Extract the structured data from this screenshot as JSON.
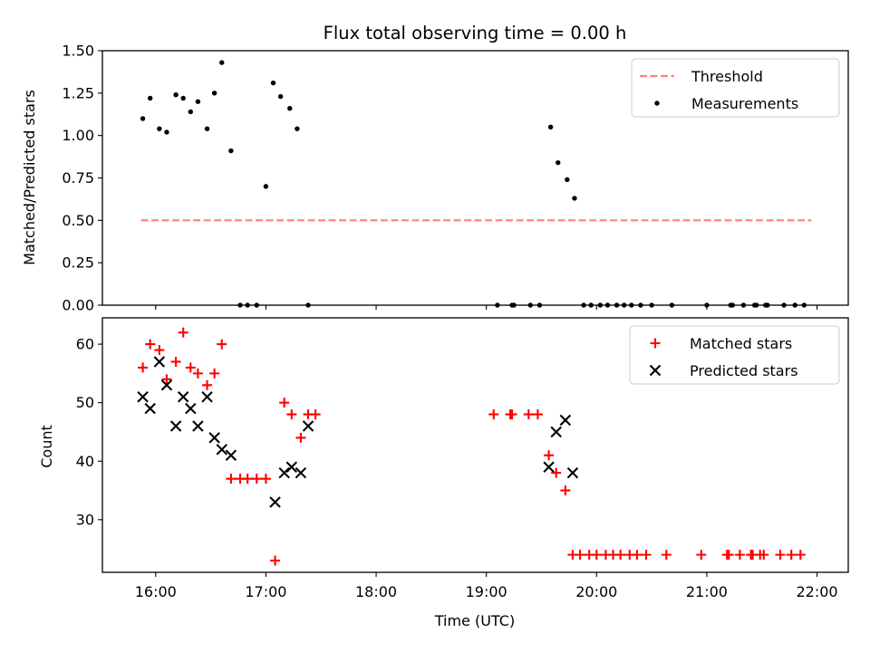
{
  "chart_data": [
    {
      "type": "scatter",
      "title": "Flux total observing time = 0.00 h",
      "xlabel": "",
      "ylabel": "Matched/Predicted stars",
      "xlim": [
        "15:31",
        "22:17"
      ],
      "ylim": [
        0,
        1.5
      ],
      "yticks": [
        0,
        0.25,
        0.5,
        0.75,
        1.0,
        1.25,
        1.5
      ],
      "ytick_labels": [
        "0.00",
        "0.25",
        "0.50",
        "0.75",
        "1.00",
        "1.25",
        "1.50"
      ],
      "xticks": [
        "16:00",
        "17:00",
        "18:00",
        "19:00",
        "20:00",
        "21:00",
        "22:00"
      ],
      "show_xtick_labels": false,
      "legend_position": "top-right",
      "series": [
        {
          "name": "Threshold",
          "kind": "line",
          "style": "dashed",
          "color": "#ff7f7f",
          "points": [
            [
              "15:52",
              0.5
            ],
            [
              "21:57",
              0.5
            ]
          ]
        },
        {
          "name": "Measurements",
          "kind": "scatter",
          "marker": "dot",
          "color": "#000000",
          "points": [
            [
              "15:53",
              1.1
            ],
            [
              "15:57",
              1.22
            ],
            [
              "16:02",
              1.04
            ],
            [
              "16:06",
              1.02
            ],
            [
              "16:11",
              1.24
            ],
            [
              "16:15",
              1.22
            ],
            [
              "16:19",
              1.14
            ],
            [
              "16:23",
              1.2
            ],
            [
              "16:28",
              1.04
            ],
            [
              "16:32",
              1.25
            ],
            [
              "16:36",
              1.43
            ],
            [
              "16:41",
              0.91
            ],
            [
              "16:46",
              0.0
            ],
            [
              "16:50",
              0.0
            ],
            [
              "16:55",
              0.0
            ],
            [
              "17:00",
              0.7
            ],
            [
              "17:04",
              1.31
            ],
            [
              "17:08",
              1.23
            ],
            [
              "17:13",
              1.16
            ],
            [
              "17:17",
              1.04
            ],
            [
              "17:23",
              0.0
            ],
            [
              "19:06",
              0.0
            ],
            [
              "19:14",
              0.0
            ],
            [
              "19:15",
              0.0
            ],
            [
              "19:24",
              0.0
            ],
            [
              "19:29",
              0.0
            ],
            [
              "19:35",
              1.05
            ],
            [
              "19:39",
              0.84
            ],
            [
              "19:44",
              0.74
            ],
            [
              "19:48",
              0.63
            ],
            [
              "19:53",
              0.0
            ],
            [
              "19:57",
              0.0
            ],
            [
              "20:02",
              0.0
            ],
            [
              "20:06",
              0.0
            ],
            [
              "20:11",
              0.0
            ],
            [
              "20:15",
              0.0
            ],
            [
              "20:19",
              0.0
            ],
            [
              "20:24",
              0.0
            ],
            [
              "20:30",
              0.0
            ],
            [
              "20:41",
              0.0
            ],
            [
              "21:00",
              0.0
            ],
            [
              "21:13",
              0.0
            ],
            [
              "21:14",
              0.0
            ],
            [
              "21:20",
              0.0
            ],
            [
              "21:26",
              0.0
            ],
            [
              "21:27",
              0.0
            ],
            [
              "21:32",
              0.0
            ],
            [
              "21:33",
              0.0
            ],
            [
              "21:42",
              0.0
            ],
            [
              "21:48",
              0.0
            ],
            [
              "21:53",
              0.0
            ]
          ]
        }
      ]
    },
    {
      "type": "scatter",
      "title": "",
      "xlabel": "Time (UTC)",
      "ylabel": "Count",
      "xlim": [
        "15:31",
        "22:17"
      ],
      "ylim": [
        21,
        64.5
      ],
      "yticks": [
        30,
        40,
        50,
        60
      ],
      "ytick_labels": [
        "30",
        "40",
        "50",
        "60"
      ],
      "xticks": [
        "16:00",
        "17:00",
        "18:00",
        "19:00",
        "20:00",
        "21:00",
        "22:00"
      ],
      "show_xtick_labels": true,
      "legend_position": "top-right",
      "series": [
        {
          "name": "Matched stars",
          "kind": "scatter",
          "marker": "plus",
          "color": "#ff0000",
          "points": [
            [
              "15:53",
              56
            ],
            [
              "15:57",
              60
            ],
            [
              "16:02",
              59
            ],
            [
              "16:06",
              54
            ],
            [
              "16:11",
              57
            ],
            [
              "16:15",
              62
            ],
            [
              "16:19",
              56
            ],
            [
              "16:23",
              55
            ],
            [
              "16:28",
              53
            ],
            [
              "16:32",
              55
            ],
            [
              "16:36",
              60
            ],
            [
              "16:41",
              37
            ],
            [
              "16:46",
              37
            ],
            [
              "16:50",
              37
            ],
            [
              "16:55",
              37
            ],
            [
              "17:00",
              37
            ],
            [
              "17:05",
              23
            ],
            [
              "17:10",
              50
            ],
            [
              "17:14",
              48
            ],
            [
              "17:19",
              44
            ],
            [
              "17:23",
              48
            ],
            [
              "17:27",
              48
            ],
            [
              "19:04",
              48
            ],
            [
              "19:13",
              48
            ],
            [
              "19:14",
              48
            ],
            [
              "19:23",
              48
            ],
            [
              "19:28",
              48
            ],
            [
              "19:34",
              41
            ],
            [
              "19:38",
              38
            ],
            [
              "19:43",
              35
            ],
            [
              "19:47",
              24
            ],
            [
              "19:51",
              24
            ],
            [
              "19:56",
              24
            ],
            [
              "20:00",
              24
            ],
            [
              "20:05",
              24
            ],
            [
              "20:09",
              24
            ],
            [
              "20:13",
              24
            ],
            [
              "20:18",
              24
            ],
            [
              "20:22",
              24
            ],
            [
              "20:27",
              24
            ],
            [
              "20:38",
              24
            ],
            [
              "20:57",
              24
            ],
            [
              "21:11",
              24
            ],
            [
              "21:12",
              24
            ],
            [
              "21:18",
              24
            ],
            [
              "21:24",
              24
            ],
            [
              "21:25",
              24
            ],
            [
              "21:29",
              24
            ],
            [
              "21:31",
              24
            ],
            [
              "21:40",
              24
            ],
            [
              "21:46",
              24
            ],
            [
              "21:51",
              24
            ]
          ]
        },
        {
          "name": "Predicted stars",
          "kind": "scatter",
          "marker": "x",
          "color": "#000000",
          "points": [
            [
              "15:53",
              51
            ],
            [
              "15:57",
              49
            ],
            [
              "16:02",
              57
            ],
            [
              "16:06",
              53
            ],
            [
              "16:11",
              46
            ],
            [
              "16:15",
              51
            ],
            [
              "16:19",
              49
            ],
            [
              "16:23",
              46
            ],
            [
              "16:28",
              51
            ],
            [
              "16:32",
              44
            ],
            [
              "16:36",
              42
            ],
            [
              "16:41",
              41
            ],
            [
              "17:05",
              33
            ],
            [
              "17:10",
              38
            ],
            [
              "17:14",
              39
            ],
            [
              "17:19",
              38
            ],
            [
              "17:23",
              46
            ],
            [
              "19:34",
              39
            ],
            [
              "19:38",
              45
            ],
            [
              "19:43",
              47
            ],
            [
              "19:47",
              38
            ]
          ]
        }
      ]
    }
  ]
}
